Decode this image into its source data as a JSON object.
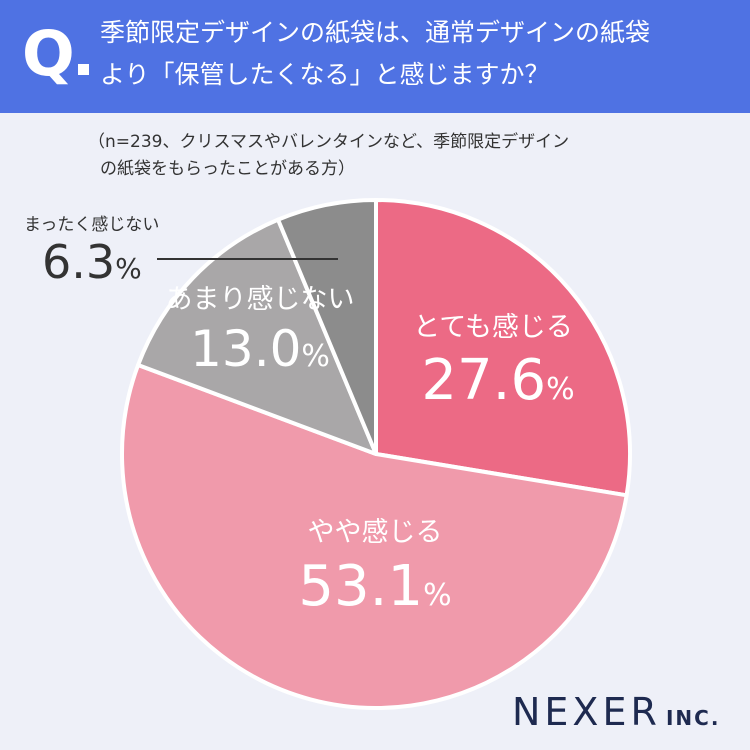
{
  "header": {
    "q_mark": "Q",
    "question_line1": "季節限定デザインの紙袋は、通常デザインの紙袋",
    "question_line2": "より「保管したくなる」と感じますか？"
  },
  "note": {
    "line1": "（n=239、クリスマスやバレンタインなど、季節限定デザイン",
    "line2": "の紙袋をもらったことがある方）"
  },
  "chart_data": {
    "type": "pie",
    "n": 239,
    "slices": [
      {
        "label": "とても感じる",
        "value": 27.6,
        "value_text": "27.6",
        "color": "#ec6a85"
      },
      {
        "label": "やや感じる",
        "value": 53.1,
        "value_text": "53.1",
        "color": "#f09aab"
      },
      {
        "label": "あまり感じない",
        "value": 13.0,
        "value_text": "13.0",
        "color": "#a9a7a8"
      },
      {
        "label": "まったく感じない",
        "value": 6.3,
        "value_text": "6.3",
        "color": "#8c8c8c"
      }
    ],
    "unit": "%"
  },
  "logo": {
    "main": "NEXER",
    "sub": "INC."
  }
}
